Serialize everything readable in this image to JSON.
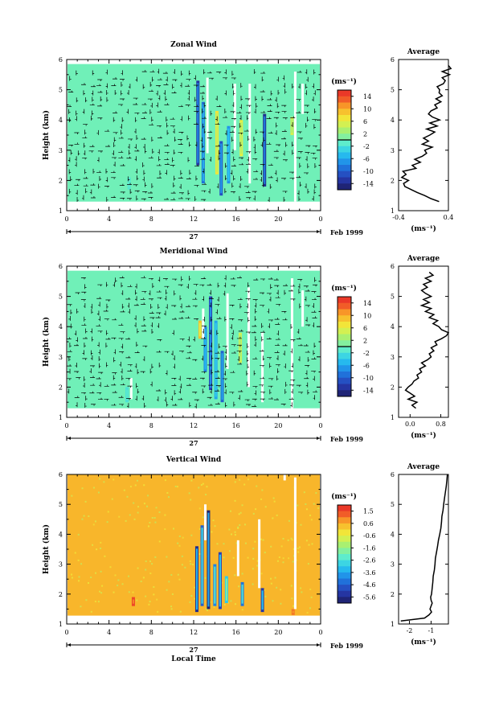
{
  "chart_data": [
    {
      "type": "heatmap",
      "title": "Zonal Wind",
      "ylabel": "Height (km)",
      "x_ticks": [
        "0",
        "4",
        "8",
        "12",
        "16",
        "20",
        "0"
      ],
      "y_ticks": [
        "1",
        "2",
        "3",
        "4",
        "5",
        "6"
      ],
      "xlim": [
        0,
        24
      ],
      "ylim": [
        1,
        6
      ],
      "day_label": "27",
      "month_label": "Feb 1999",
      "colorbar": {
        "unit": "(ms⁻¹)",
        "ticks": [
          "14",
          "10",
          "6",
          "2",
          "-2",
          "-6",
          "-10",
          "-14"
        ],
        "range": [
          -16,
          16
        ]
      },
      "background_value": 0,
      "events": [
        {
          "t": 5.9,
          "h0": 1.7,
          "h1": 2.1,
          "v": -1.5
        },
        {
          "t": 12.4,
          "h0": 2.5,
          "h1": 5.3,
          "v": -13
        },
        {
          "t": 12.9,
          "h0": 1.9,
          "h1": 4.6,
          "v": -9
        },
        {
          "t": 14.2,
          "h0": 2.2,
          "h1": 4.3,
          "v": 7
        },
        {
          "t": 14.6,
          "h0": 1.5,
          "h1": 3.3,
          "v": -11
        },
        {
          "t": 15.3,
          "h0": 1.9,
          "h1": 3.8,
          "v": -7
        },
        {
          "t": 16.5,
          "h0": 2.8,
          "h1": 4.0,
          "v": 6
        },
        {
          "t": 18.7,
          "h0": 1.8,
          "h1": 4.2,
          "v": -14
        },
        {
          "t": 21.3,
          "h0": 3.5,
          "h1": 4.1,
          "v": 5
        }
      ],
      "gaps": [
        {
          "t": 13.3,
          "h0": 2.9,
          "h1": 5.4
        },
        {
          "t": 15.9,
          "h0": 3.0,
          "h1": 5.2
        },
        {
          "t": 17.3,
          "h0": 1.9,
          "h1": 5.2
        },
        {
          "t": 21.6,
          "h0": 1.3,
          "h1": 5.6
        },
        {
          "t": 22.3,
          "h0": 4.2,
          "h1": 5.2
        }
      ],
      "profile": {
        "title": "Average",
        "xlabel": "(ms⁻¹)",
        "x_ticks": [
          "-0.4",
          "0.4"
        ],
        "xlim": [
          -0.4,
          0.4
        ],
        "h": [
          1.3,
          1.4,
          1.5,
          1.6,
          1.7,
          1.8,
          1.9,
          2.0,
          2.1,
          2.2,
          2.3,
          2.4,
          2.5,
          2.6,
          2.7,
          2.8,
          2.9,
          3.0,
          3.1,
          3.2,
          3.3,
          3.4,
          3.5,
          3.6,
          3.7,
          3.8,
          3.9,
          4.0,
          4.1,
          4.2,
          4.3,
          4.4,
          4.5,
          4.6,
          4.7,
          4.8,
          4.9,
          5.0,
          5.1,
          5.2,
          5.3,
          5.4,
          5.5,
          5.6,
          5.7,
          5.8
        ],
        "v": [
          0.25,
          0.12,
          0.02,
          -0.1,
          -0.2,
          -0.3,
          -0.32,
          -0.24,
          -0.35,
          -0.28,
          -0.33,
          -0.12,
          -0.18,
          -0.05,
          -0.14,
          -0.02,
          0.05,
          0.02,
          0.14,
          -0.02,
          0.08,
          0.0,
          0.1,
          0.18,
          0.05,
          0.22,
          0.1,
          0.26,
          0.14,
          0.08,
          0.12,
          0.22,
          0.18,
          0.28,
          0.2,
          0.3,
          0.25,
          0.26,
          0.22,
          0.32,
          0.35,
          0.3,
          0.42,
          0.3,
          0.44,
          0.4
        ]
      }
    },
    {
      "type": "heatmap",
      "title": "Meridional Wind",
      "ylabel": "Height (km)",
      "x_ticks": [
        "0",
        "4",
        "8",
        "12",
        "16",
        "20",
        "0"
      ],
      "y_ticks": [
        "1",
        "2",
        "3",
        "4",
        "5",
        "6"
      ],
      "xlim": [
        0,
        24
      ],
      "ylim": [
        1,
        6
      ],
      "day_label": "27",
      "month_label": "Feb 1999",
      "colorbar": {
        "unit": "(ms⁻¹)",
        "ticks": [
          "14",
          "10",
          "6",
          "2",
          "-2",
          "-6",
          "-10",
          "-14"
        ],
        "range": [
          -16,
          16
        ]
      },
      "background_value": 0,
      "events": [
        {
          "t": 5.7,
          "h0": 1.5,
          "h1": 2.0,
          "v": -2
        },
        {
          "t": 12.6,
          "h0": 3.6,
          "h1": 4.2,
          "v": 9
        },
        {
          "t": 13.1,
          "h0": 2.5,
          "h1": 4.0,
          "v": -8
        },
        {
          "t": 13.6,
          "h0": 1.9,
          "h1": 5.0,
          "v": -12
        },
        {
          "t": 14.1,
          "h0": 1.6,
          "h1": 4.2,
          "v": -6
        },
        {
          "t": 14.7,
          "h0": 1.5,
          "h1": 3.2,
          "v": -10
        },
        {
          "t": 16.4,
          "h0": 2.8,
          "h1": 3.8,
          "v": 5
        }
      ],
      "gaps": [
        {
          "t": 6.1,
          "h0": 1.6,
          "h1": 2.3
        },
        {
          "t": 12.9,
          "h0": 3.6,
          "h1": 4.6
        },
        {
          "t": 15.2,
          "h0": 2.6,
          "h1": 5.1
        },
        {
          "t": 17.2,
          "h0": 2.0,
          "h1": 5.3
        },
        {
          "t": 18.5,
          "h0": 1.5,
          "h1": 3.8
        },
        {
          "t": 21.3,
          "h0": 1.3,
          "h1": 5.6
        },
        {
          "t": 22.3,
          "h0": 4.0,
          "h1": 5.2
        }
      ],
      "profile": {
        "title": "Average",
        "xlabel": "(ms⁻¹)",
        "x_ticks": [
          "0.0",
          "0.8"
        ],
        "xlim": [
          -0.3,
          1.0
        ],
        "h": [
          1.3,
          1.4,
          1.5,
          1.6,
          1.7,
          1.8,
          1.9,
          2.0,
          2.1,
          2.2,
          2.3,
          2.4,
          2.5,
          2.6,
          2.7,
          2.8,
          2.9,
          3.0,
          3.1,
          3.2,
          3.3,
          3.4,
          3.5,
          3.6,
          3.7,
          3.8,
          3.9,
          4.0,
          4.1,
          4.2,
          4.3,
          4.4,
          4.5,
          4.6,
          4.7,
          4.8,
          4.9,
          5.0,
          5.1,
          5.2,
          5.3,
          5.4,
          5.5,
          5.6,
          5.7,
          5.8
        ],
        "v": [
          0.15,
          0.05,
          0.18,
          -0.05,
          0.12,
          0.0,
          -0.12,
          -0.05,
          0.05,
          0.1,
          0.22,
          0.18,
          0.3,
          0.25,
          0.4,
          0.3,
          0.45,
          0.55,
          0.5,
          0.62,
          0.55,
          0.7,
          0.65,
          0.82,
          0.95,
          1.0,
          0.82,
          0.75,
          0.6,
          0.72,
          0.5,
          0.62,
          0.4,
          0.55,
          0.3,
          0.5,
          0.35,
          0.55,
          0.4,
          0.3,
          0.45,
          0.35,
          0.55,
          0.4,
          0.6,
          0.5
        ]
      }
    },
    {
      "type": "heatmap",
      "title": "Vertical Wind",
      "ylabel": "Height (km)",
      "xlabel": "Local Time",
      "x_ticks": [
        "0",
        "4",
        "8",
        "12",
        "16",
        "20",
        "0"
      ],
      "y_ticks": [
        "1",
        "2",
        "3",
        "4",
        "5",
        "6"
      ],
      "xlim": [
        0,
        24
      ],
      "ylim": [
        1,
        6
      ],
      "day_label": "27",
      "month_label": "Feb 1999",
      "colorbar": {
        "unit": "(ms⁻¹)",
        "ticks": [
          "1.5",
          "0.6",
          "-0.6",
          "-1.6",
          "-2.6",
          "-3.6",
          "-4.6",
          "-5.6"
        ],
        "range": [
          -6.0,
          2.0
        ]
      },
      "background_value": 0.4,
      "events": [
        {
          "t": 6.3,
          "h0": 1.6,
          "h1": 1.9,
          "v": 1.5
        },
        {
          "t": 12.3,
          "h0": 1.4,
          "h1": 3.6,
          "v": -5.5
        },
        {
          "t": 12.8,
          "h0": 1.6,
          "h1": 4.3,
          "v": -4.5
        },
        {
          "t": 13.4,
          "h0": 1.5,
          "h1": 4.8,
          "v": -5.8
        },
        {
          "t": 14.0,
          "h0": 1.6,
          "h1": 3.0,
          "v": -4.0
        },
        {
          "t": 14.5,
          "h0": 1.5,
          "h1": 3.4,
          "v": -5.0
        },
        {
          "t": 15.1,
          "h0": 1.7,
          "h1": 2.6,
          "v": -3.0
        },
        {
          "t": 16.6,
          "h0": 1.6,
          "h1": 2.4,
          "v": -4.2
        },
        {
          "t": 18.5,
          "h0": 1.4,
          "h1": 2.2,
          "v": -5.2
        },
        {
          "t": 21.4,
          "h0": 1.3,
          "h1": 1.5,
          "v": 1.0
        }
      ],
      "gaps": [
        {
          "t": 13.1,
          "h0": 3.8,
          "h1": 5.0
        },
        {
          "t": 16.2,
          "h0": 2.6,
          "h1": 3.8
        },
        {
          "t": 18.2,
          "h0": 2.2,
          "h1": 4.5
        },
        {
          "t": 20.6,
          "h0": 5.8,
          "h1": 6.0
        },
        {
          "t": 21.6,
          "h0": 1.5,
          "h1": 5.9
        }
      ],
      "profile": {
        "title": "Average",
        "xlabel": "(ms⁻¹)",
        "x_ticks": [
          "-2",
          "-1"
        ],
        "xlim": [
          -2.5,
          -0.2
        ],
        "h": [
          1.1,
          1.2,
          1.3,
          1.4,
          1.5,
          1.6,
          1.7,
          1.8,
          1.9,
          2.0,
          2.2,
          2.4,
          2.6,
          2.8,
          3.0,
          3.2,
          3.4,
          3.6,
          3.8,
          4.0,
          4.2,
          4.4,
          4.6,
          4.8,
          5.0,
          5.2,
          5.4,
          5.6,
          5.8,
          6.0
        ],
        "v": [
          -2.4,
          -1.3,
          -1.1,
          -0.98,
          -1.05,
          -1.0,
          -0.95,
          -1.0,
          -1.02,
          -0.98,
          -0.95,
          -0.92,
          -0.9,
          -0.85,
          -0.82,
          -0.8,
          -0.75,
          -0.7,
          -0.66,
          -0.6,
          -0.55,
          -0.52,
          -0.5,
          -0.45,
          -0.42,
          -0.38,
          -0.34,
          -0.3,
          -0.27,
          -0.25
        ]
      }
    }
  ]
}
